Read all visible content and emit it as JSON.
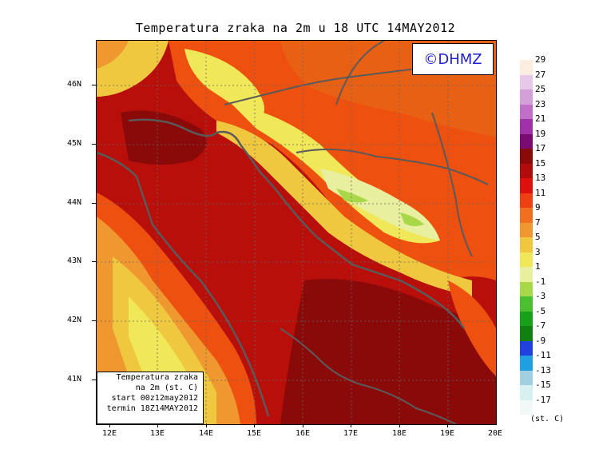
{
  "title": "Temperatura zraka na 2m u 18 UTC 14MAY2012",
  "logo": "©DHMZ",
  "y_axis_labels": [
    "46N",
    "45N",
    "44N",
    "43N",
    "42N",
    "41N"
  ],
  "x_axis_labels": [
    "12E",
    "13E",
    "14E",
    "15E",
    "16E",
    "17E",
    "18E",
    "19E",
    "20E"
  ],
  "info_box": {
    "line1": "Temperatura zraka",
    "line2": "na 2m (st. C)",
    "line3": "start 00z12may2012",
    "line4": "termin 18Z14MAY2012"
  },
  "colorbar": {
    "labels": [
      "29",
      "27",
      "25",
      "23",
      "21",
      "19",
      "17",
      "15",
      "13",
      "11",
      "9",
      "7",
      "5",
      "3",
      "1",
      "-1",
      "-3",
      "-5",
      "-7",
      "-9",
      "-11",
      "-13",
      "-15",
      "-17"
    ],
    "colors": [
      "#fbeee0",
      "#e8c8e8",
      "#d4a0d8",
      "#c070c8",
      "#a030a8",
      "#7a0a70",
      "#8a0a0a",
      "#b00c0c",
      "#dd1010",
      "#ee4010",
      "#f07020",
      "#f09830",
      "#f0c840",
      "#f0e858",
      "#e8f0a0",
      "#a8d848",
      "#48c030",
      "#18a018",
      "#108010",
      "#2040e0",
      "#20a0e0",
      "#a0d0e0",
      "#d8f0f0",
      "#f0f8f8"
    ],
    "unit": "(st. C)"
  },
  "colors": {
    "sea_warm": "#b80f0a",
    "land_hot": "#ee5010",
    "coastline": "#5a5a5a"
  }
}
